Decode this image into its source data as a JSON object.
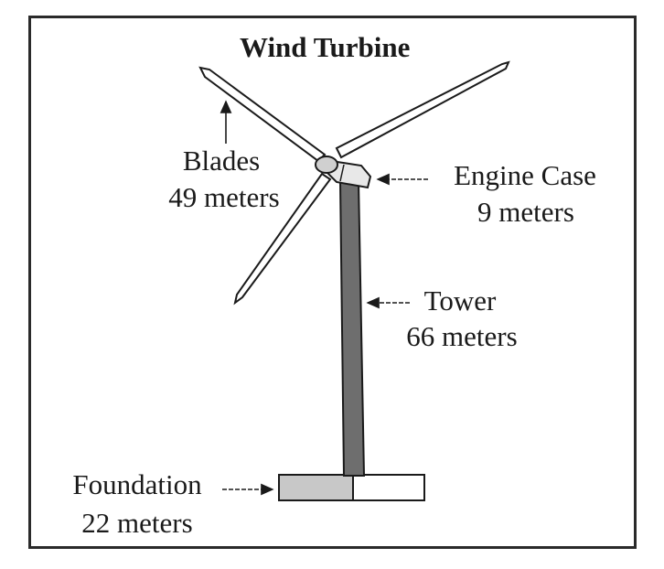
{
  "title": "Wind Turbine",
  "parts": {
    "blades": {
      "name": "Blades",
      "length": "49 meters"
    },
    "engine_case": {
      "name": "Engine Case",
      "length": "9 meters"
    },
    "tower": {
      "name": "Tower",
      "length": "66 meters"
    },
    "foundation": {
      "name": "Foundation",
      "length": "22 meters"
    }
  },
  "colors": {
    "line": "#1a1a1a",
    "tower_fill": "#6e6e6e",
    "foundation_fill": "#c8c8c8",
    "blade_fill": "#ffffff"
  }
}
